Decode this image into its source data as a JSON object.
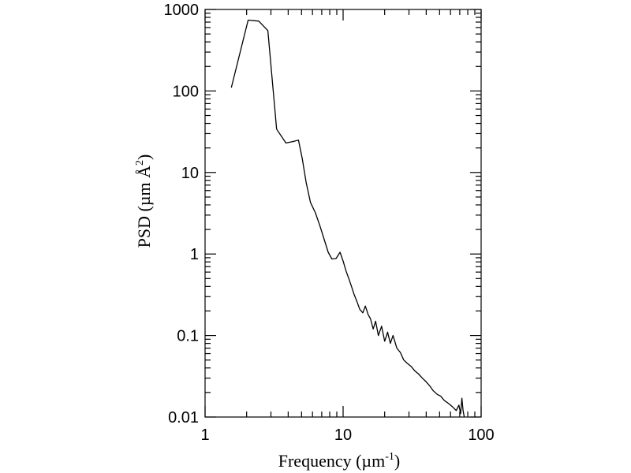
{
  "chart_data": {
    "type": "line",
    "xlabel": "Frequency (µm",
    "xlabel_sup": "-1",
    "xlabel_close": ")",
    "ylabel": "PSD (µm Å",
    "ylabel_sup": "2",
    "ylabel_close": ")",
    "xscale": "log",
    "yscale": "log",
    "xlim": [
      1,
      100
    ],
    "ylim": [
      0.01,
      1000
    ],
    "grid": false,
    "x_ticks": [
      1,
      10,
      100
    ],
    "x_tick_labels": [
      "1",
      "10",
      "100"
    ],
    "y_ticks": [
      0.01,
      0.1,
      1,
      10,
      100,
      1000
    ],
    "y_tick_labels": [
      "0.01",
      "0.1",
      "1",
      "10",
      "100",
      "1000"
    ],
    "series": [
      {
        "x": [
          1.55,
          2.05,
          2.45,
          2.85,
          3.3,
          3.85,
          4.35,
          4.75,
          5.05,
          5.4,
          5.8,
          6.3,
          6.8,
          7.3,
          7.8,
          8.3,
          8.9,
          9.5,
          10.0,
          10.5,
          11.0,
          11.5,
          12.0,
          12.6,
          13.2,
          13.9,
          14.5,
          15.2,
          15.8,
          16.5,
          17.2,
          18.0,
          19.0,
          20.0,
          21.0,
          22.0,
          23.0,
          24.5,
          26.0,
          27.5,
          29.0,
          31.0,
          33.0,
          35.0,
          37.5,
          40.0,
          42.5,
          45.0,
          48.0,
          51.0,
          54.0,
          57.0,
          60.0,
          63.0,
          66.0,
          69.0,
          71.0,
          72.5,
          74.0,
          75.5
        ],
        "y": [
          110,
          740,
          720,
          550,
          34,
          23,
          24,
          25,
          15,
          7.5,
          4.3,
          3.2,
          2.2,
          1.5,
          1.05,
          0.87,
          0.88,
          1.05,
          0.82,
          0.62,
          0.5,
          0.4,
          0.32,
          0.26,
          0.21,
          0.19,
          0.23,
          0.18,
          0.16,
          0.12,
          0.15,
          0.1,
          0.13,
          0.085,
          0.11,
          0.08,
          0.1,
          0.07,
          0.062,
          0.05,
          0.046,
          0.042,
          0.037,
          0.034,
          0.03,
          0.027,
          0.024,
          0.021,
          0.019,
          0.018,
          0.016,
          0.015,
          0.014,
          0.013,
          0.012,
          0.014,
          0.011,
          0.017,
          0.012,
          0.01
        ]
      }
    ]
  }
}
